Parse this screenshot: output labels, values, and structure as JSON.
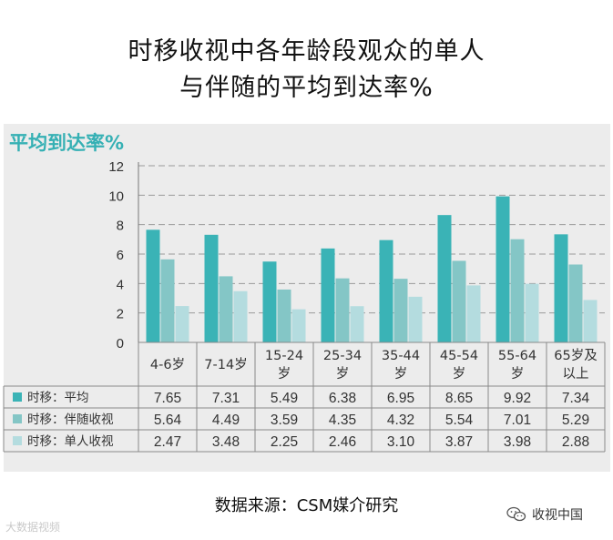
{
  "title_line1": "时移收视中各年龄段观众的单人",
  "title_line2": "与伴随的平均到达率%",
  "source": "数据来源：CSM媒介研究",
  "watermark_left": "大数据视频",
  "watermark_right": "收视中国",
  "colors": {
    "avg": "#3ab3b6",
    "companion": "#84c6c6",
    "single": "#b4dcdf",
    "ylabel": "#35b0b4",
    "grid": "#9a9a9a"
  },
  "chart_data": {
    "type": "bar",
    "title": "时移收视中各年龄段观众的单人与伴随的平均到达率%",
    "ylabel": "平均到达率%",
    "ylim": [
      0,
      12
    ],
    "yticks": [
      0,
      2,
      4,
      6,
      8,
      10,
      12
    ],
    "grid": true,
    "categories": [
      "4-6岁",
      "7-14岁",
      "15-24岁",
      "25-34岁",
      "35-44岁",
      "45-54岁",
      "55-64岁",
      "65岁及以上"
    ],
    "category_lines": [
      [
        "4-6岁"
      ],
      [
        "7-14岁"
      ],
      [
        "15-24",
        "岁"
      ],
      [
        "25-34",
        "岁"
      ],
      [
        "35-44",
        "岁"
      ],
      [
        "45-54",
        "岁"
      ],
      [
        "55-64",
        "岁"
      ],
      [
        "65岁及",
        "以上"
      ]
    ],
    "series": [
      {
        "name": "时移：平均",
        "values": [
          7.65,
          7.31,
          5.49,
          6.38,
          6.95,
          8.65,
          9.92,
          7.34
        ]
      },
      {
        "name": "时移：伴随收视",
        "values": [
          5.64,
          4.49,
          3.59,
          4.35,
          4.32,
          5.54,
          7.01,
          5.29
        ]
      },
      {
        "name": "时移：单人收视",
        "values": [
          2.47,
          3.48,
          2.25,
          2.46,
          3.1,
          3.87,
          3.98,
          2.88
        ]
      }
    ],
    "table_values": [
      [
        "7.65",
        "7.31",
        "5.49",
        "6.38",
        "6.95",
        "8.65",
        "9.92",
        "7.34"
      ],
      [
        "5.64",
        "4.49",
        "3.59",
        "4.35",
        "4.32",
        "5.54",
        "7.01",
        "5.29"
      ],
      [
        "2.47",
        "3.48",
        "2.25",
        "2.46",
        "3.10",
        "3.87",
        "3.98",
        "2.88"
      ]
    ]
  }
}
